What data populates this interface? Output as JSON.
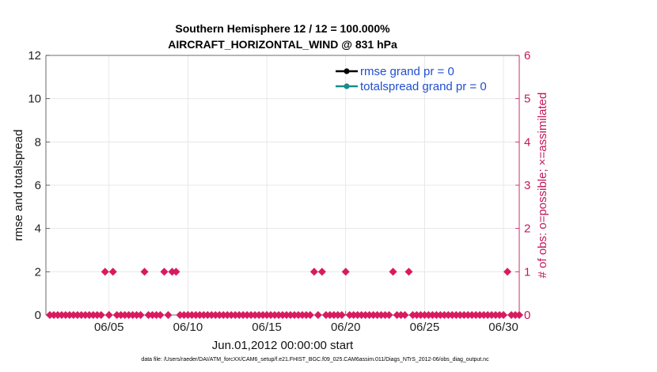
{
  "chart_data": {
    "type": "scatter",
    "title": "Southern Hemisphere 12 / 12 = 100.000%",
    "subtitle": "AIRCRAFT_HORIZONTAL_WIND @ 831 hPa",
    "xlabel": "Jun.01,2012 00:00:00 start",
    "ylabel": "rmse and totalspread",
    "y2label": "# of obs: o=possible; ×=assimilated",
    "xlim": [
      1,
      31
    ],
    "ylim": [
      0,
      12
    ],
    "y2lim": [
      0,
      6
    ],
    "grid": true,
    "x_ticks": [
      5,
      10,
      15,
      20,
      25,
      30
    ],
    "x_tick_labels": [
      "06/05",
      "06/10",
      "06/15",
      "06/20",
      "06/25",
      "06/30"
    ],
    "y_ticks": [
      0,
      2,
      4,
      6,
      8,
      10,
      12
    ],
    "y_tick_labels": [
      "0",
      "2",
      "4",
      "6",
      "8",
      "10",
      "12"
    ],
    "y2_ticks": [
      0,
      1,
      2,
      3,
      4,
      5,
      6
    ],
    "y2_tick_labels": [
      "0",
      "1",
      "2",
      "3",
      "4",
      "5",
      "6"
    ],
    "legend_position": "top-right",
    "legend": [
      {
        "label": "rmse grand pr = 0",
        "color": "#000000"
      },
      {
        "label": "totalspread grand pr = 0",
        "color": "#1a8c8c"
      }
    ],
    "series": [
      {
        "name": "obs count (right axis)",
        "axis": "right",
        "color": "#d81b60",
        "x": [
          1.25,
          1.5,
          1.75,
          2.0,
          2.25,
          2.5,
          2.75,
          3.0,
          3.25,
          3.5,
          3.75,
          4.0,
          4.25,
          4.5,
          4.75,
          5.0,
          5.25,
          5.5,
          5.75,
          6.0,
          6.25,
          6.5,
          6.75,
          7.0,
          7.25,
          7.5,
          7.75,
          8.0,
          8.25,
          8.5,
          8.75,
          9.0,
          9.25,
          9.5,
          9.75,
          10.0,
          10.25,
          10.5,
          10.75,
          11.0,
          11.25,
          11.5,
          11.75,
          12.0,
          12.25,
          12.5,
          12.75,
          13.0,
          13.25,
          13.5,
          13.75,
          14.0,
          14.25,
          14.5,
          14.75,
          15.0,
          15.25,
          15.5,
          15.75,
          16.0,
          16.25,
          16.5,
          16.75,
          17.0,
          17.25,
          17.5,
          17.75,
          18.0,
          18.25,
          18.5,
          18.75,
          19.0,
          19.25,
          19.5,
          19.75,
          20.0,
          20.25,
          20.5,
          20.75,
          21.0,
          21.25,
          21.5,
          21.75,
          22.0,
          22.25,
          22.5,
          22.75,
          23.0,
          23.25,
          23.5,
          23.75,
          24.0,
          24.25,
          24.5,
          24.75,
          25.0,
          25.25,
          25.5,
          25.75,
          26.0,
          26.25,
          26.5,
          26.75,
          27.0,
          27.25,
          27.5,
          27.75,
          28.0,
          28.25,
          28.5,
          28.75,
          29.0,
          29.25,
          29.5,
          29.75,
          30.0,
          30.25,
          30.5,
          30.75,
          31.0
        ],
        "values": [
          0,
          0,
          0,
          0,
          0,
          0,
          0,
          0,
          0,
          0,
          0,
          0,
          0,
          0,
          1,
          0,
          1,
          0,
          0,
          0,
          0,
          0,
          0,
          0,
          1,
          0,
          0,
          0,
          0,
          1,
          0,
          1,
          1,
          0,
          0,
          0,
          0,
          0,
          0,
          0,
          0,
          0,
          0,
          0,
          0,
          0,
          0,
          0,
          0,
          0,
          0,
          0,
          0,
          0,
          0,
          0,
          0,
          0,
          0,
          0,
          0,
          0,
          0,
          0,
          0,
          0,
          0,
          1,
          0,
          1,
          0,
          0,
          0,
          0,
          0,
          1,
          0,
          0,
          0,
          0,
          0,
          0,
          0,
          0,
          0,
          0,
          0,
          1,
          0,
          0,
          0,
          1,
          0,
          0,
          0,
          0,
          0,
          0,
          0,
          0,
          0,
          0,
          0,
          0,
          0,
          0,
          0,
          0,
          0,
          0,
          0,
          0,
          0,
          0,
          0,
          0,
          1,
          0,
          0,
          0
        ]
      }
    ]
  },
  "footer": "data file: /Users/raeder/DAI/ATM_forcXX/CAM6_setup/f.e21.FHIST_BGC.f09_025.CAM6assim.011/Diags_NTrS_2012-06/obs_diag_output.nc"
}
